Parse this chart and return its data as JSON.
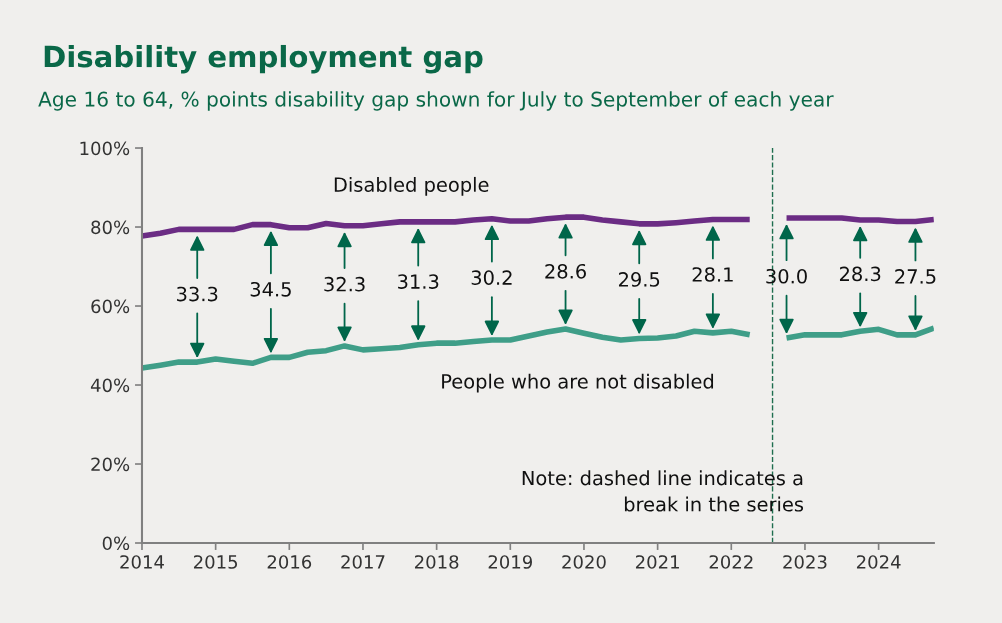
{
  "chart_data": {
    "type": "line",
    "title": "Disability employment gap",
    "subtitle": "Age 16 to 64, % points disability gap shown for July to September of each year",
    "x": [
      2014.0,
      2014.25,
      2014.5,
      2014.75,
      2015.0,
      2015.25,
      2015.5,
      2015.75,
      2016.0,
      2016.25,
      2016.5,
      2016.75,
      2017.0,
      2017.25,
      2017.5,
      2017.75,
      2018.0,
      2018.25,
      2018.5,
      2018.75,
      2019.0,
      2019.25,
      2019.5,
      2019.75,
      2020.0,
      2020.25,
      2020.5,
      2020.75,
      2021.0,
      2021.25,
      2021.5,
      2021.75,
      2022.0,
      2022.25,
      2022.5,
      2022.75,
      2023.0,
      2023.25,
      2023.5,
      2023.75,
      2024.0,
      2024.25,
      2024.5,
      2024.75
    ],
    "series": [
      {
        "name": "Disabled people",
        "color": "#6b2c84",
        "values": [
          77.7,
          78.4,
          79.4,
          79.4,
          79.4,
          79.4,
          80.6,
          80.6,
          79.8,
          79.8,
          80.9,
          80.3,
          80.3,
          80.8,
          81.3,
          81.3,
          81.3,
          81.3,
          81.8,
          82.1,
          81.5,
          81.5,
          82.1,
          82.5,
          82.5,
          81.8,
          81.3,
          80.8,
          80.8,
          81.1,
          81.5,
          81.9,
          81.9,
          81.9,
          null,
          82.3,
          82.3,
          82.3,
          82.3,
          81.8,
          81.8,
          81.4,
          81.4,
          81.9
        ]
      },
      {
        "name": "People who are not disabled",
        "color": "#3f9e88",
        "values": [
          44.3,
          45.0,
          45.8,
          45.8,
          46.6,
          46.0,
          45.5,
          47.0,
          47.0,
          48.3,
          48.7,
          49.9,
          48.9,
          49.2,
          49.5,
          50.2,
          50.6,
          50.6,
          51.0,
          51.4,
          51.4,
          52.4,
          53.4,
          54.2,
          53.1,
          52.1,
          51.4,
          51.8,
          51.9,
          52.4,
          53.6,
          53.2,
          53.6,
          52.7,
          null,
          51.9,
          52.7,
          52.7,
          52.7,
          53.6,
          54.1,
          52.7,
          52.7,
          54.4
        ]
      }
    ],
    "xlim": [
      2014,
      2024.75
    ],
    "xticks": [
      2014,
      2015,
      2016,
      2017,
      2018,
      2019,
      2020,
      2021,
      2022,
      2023,
      2024
    ],
    "ylim": [
      0,
      100
    ],
    "yticks": [
      {
        "value": 0,
        "label": "0%"
      },
      {
        "value": 20,
        "label": "20%"
      },
      {
        "value": 40,
        "label": "40%"
      },
      {
        "value": 60,
        "label": "60%"
      },
      {
        "value": 80,
        "label": "80%"
      },
      {
        "value": 100,
        "label": "100%"
      }
    ],
    "grid": false,
    "marker": "none",
    "line_style": "solid",
    "ref_lines": [
      {
        "axis": "x",
        "value": 2022.56,
        "color": "#1e6e4e",
        "line_style": "dashed"
      }
    ],
    "annotations": [
      {
        "text": "33.3",
        "x": 2014.75,
        "y": 45.8
      },
      {
        "text": "34.5",
        "x": 2015.75,
        "y": 47.0
      },
      {
        "text": "32.3",
        "x": 2016.75,
        "y": 49.9
      },
      {
        "text": "31.3",
        "x": 2017.75,
        "y": 50.2
      },
      {
        "text": "30.2",
        "x": 2018.75,
        "y": 51.4
      },
      {
        "text": "28.6",
        "x": 2019.75,
        "y": 54.2
      },
      {
        "text": "29.5",
        "x": 2020.75,
        "y": 51.8
      },
      {
        "text": "28.1",
        "x": 2021.75,
        "y": 53.2
      },
      {
        "text": "30.0",
        "x": 2022.75,
        "y": 51.9
      },
      {
        "text": "28.3",
        "x": 2023.75,
        "y": 53.6
      },
      {
        "text": "27.5",
        "x": 2024.5,
        "y": 52.7
      },
      "Note: dashed line indicates a\nbreak in the series"
    ]
  }
}
